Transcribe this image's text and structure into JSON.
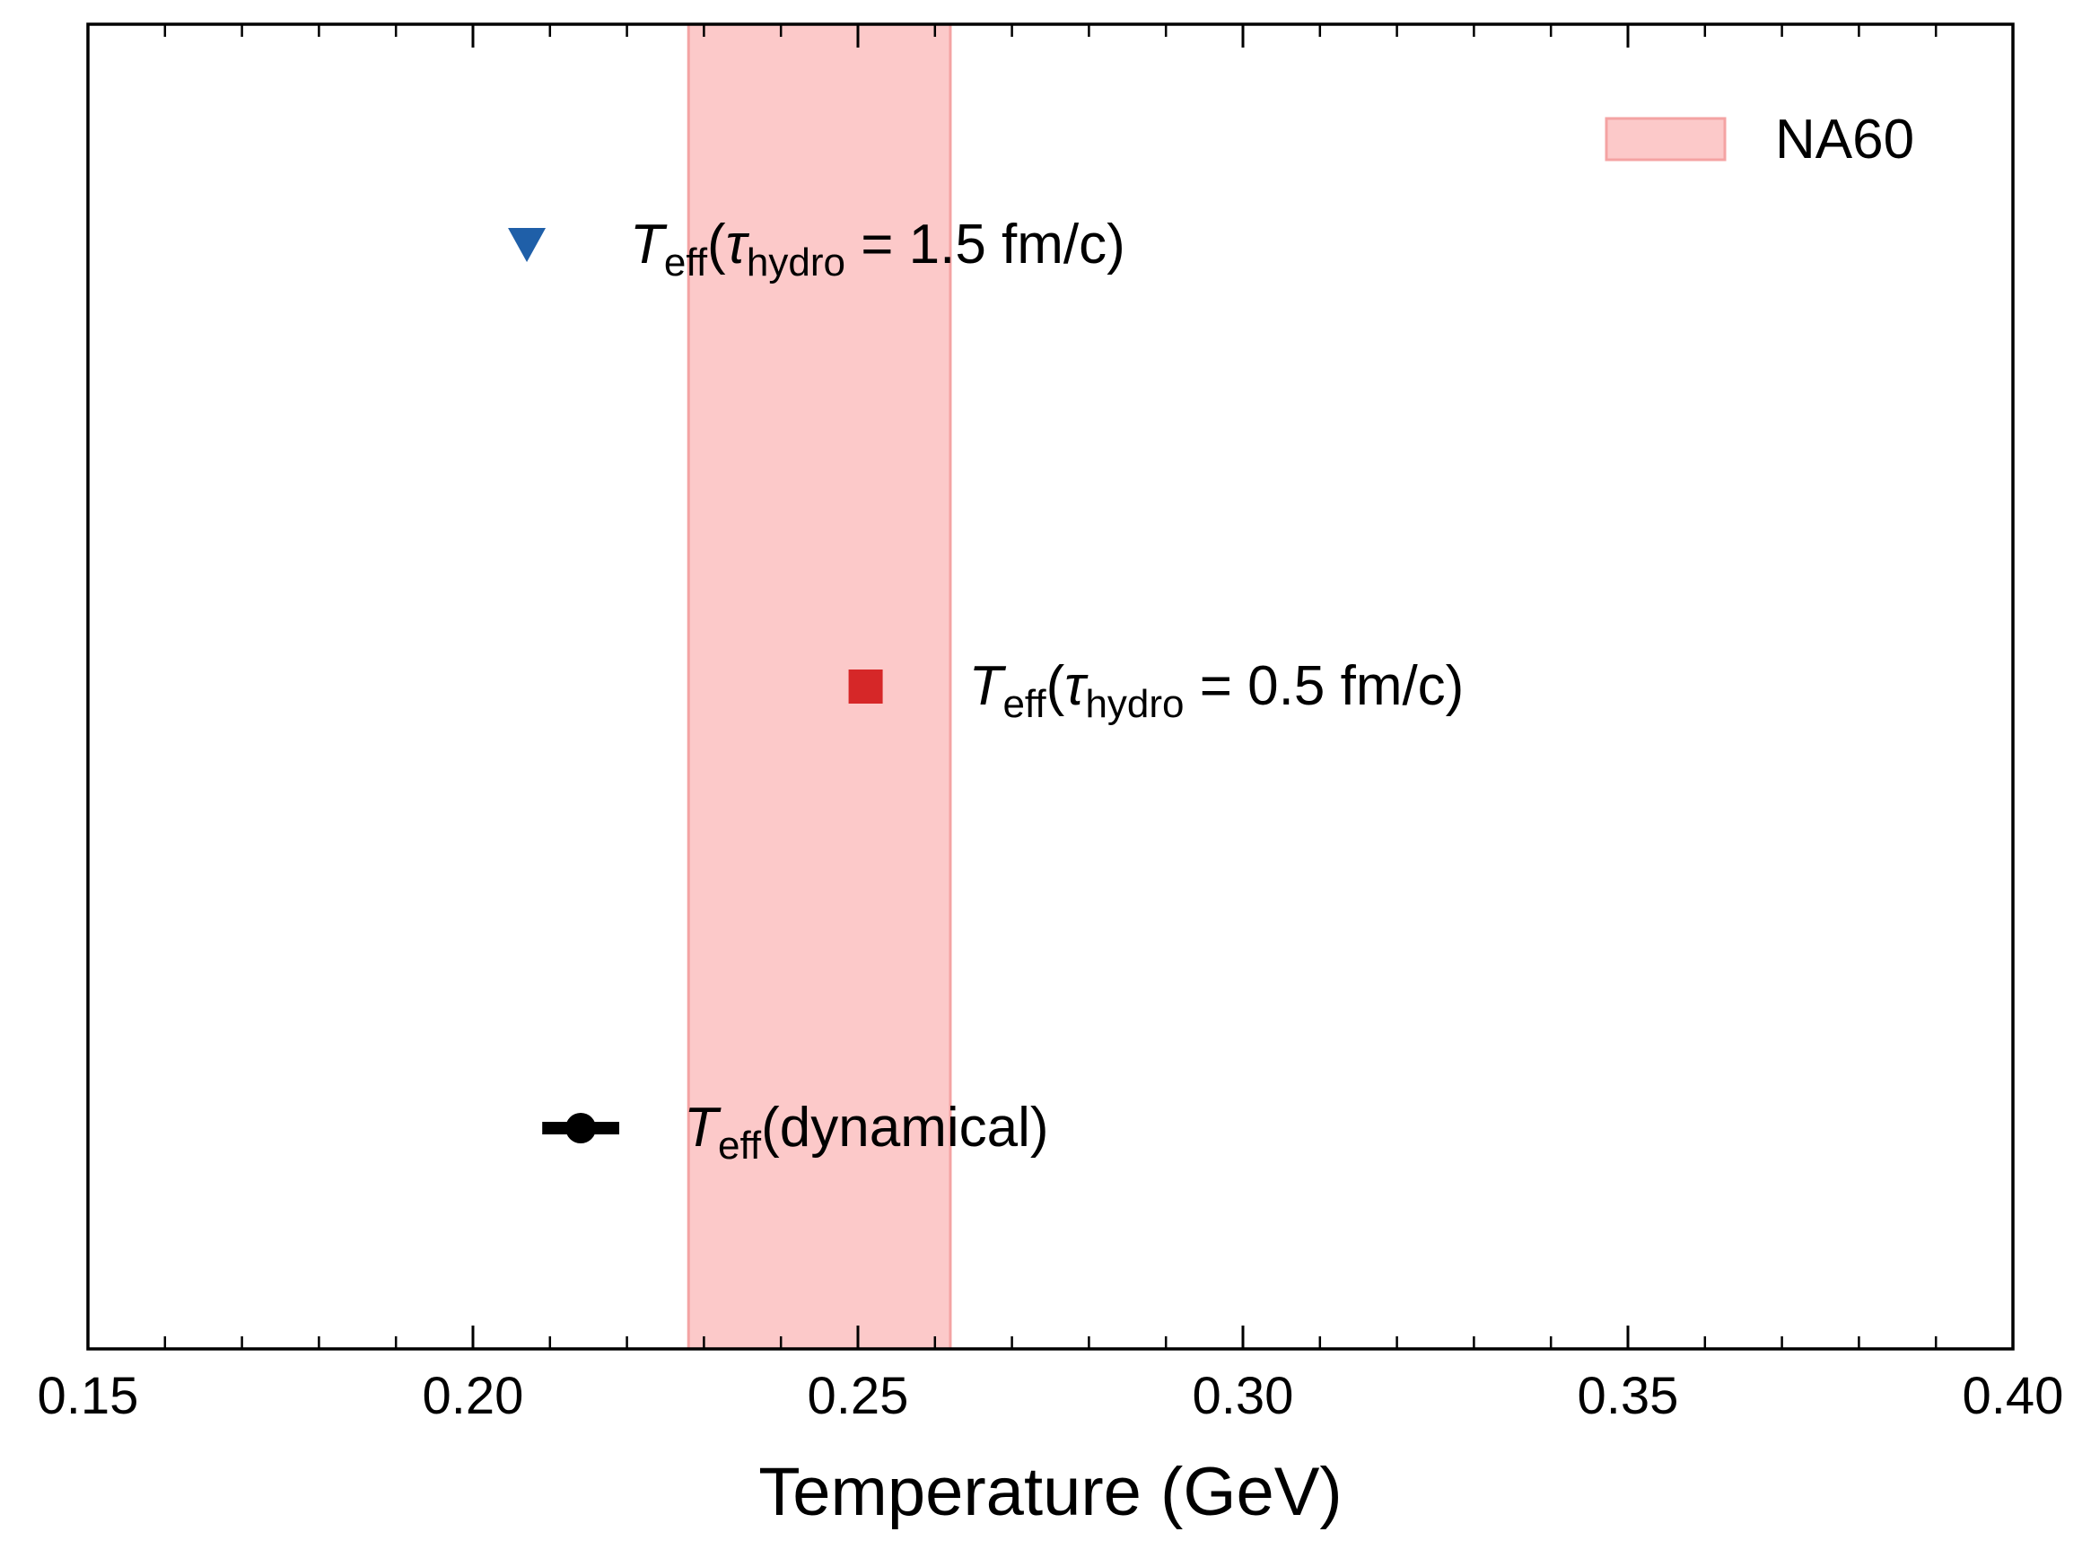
{
  "chart_data": {
    "type": "scatter",
    "xlabel": "Temperature (GeV)",
    "ylabel": "",
    "xlim": [
      0.15,
      0.4
    ],
    "ylim": [
      0,
      3
    ],
    "x_ticks": [
      "0.15",
      "0.20",
      "0.25",
      "0.30",
      "0.35",
      "0.40"
    ],
    "x_tick_values": [
      0.15,
      0.2,
      0.25,
      0.3,
      0.35,
      0.4
    ],
    "x_minor_step": 0.01,
    "grid": false,
    "legend_position": "top-right",
    "band": {
      "name": "NA60",
      "x_range": [
        0.228,
        0.262
      ],
      "fill_color": "#fcc9c9",
      "edge_color": "#f4a3a3"
    },
    "points": [
      {
        "name": "dynamical",
        "x": 0.214,
        "y": 0.5,
        "xerr": [
          0.005,
          0.005
        ],
        "marker": "circle",
        "color": "#000000",
        "label": {
          "main": "T",
          "sub": "eff",
          "text": "(dynamical)"
        }
      },
      {
        "name": "tau-0.5",
        "x": 0.251,
        "y": 1.5,
        "marker": "square",
        "color": "#d62728",
        "label": {
          "main": "T",
          "sub": "eff",
          "paren_open": "(",
          "tau": "τ",
          "tau_sub": "hydro",
          "text": " = 0.5 fm/c)"
        }
      },
      {
        "name": "tau-1.5",
        "x": 0.207,
        "y": 2.5,
        "marker": "triangle-down",
        "color": "#1f5fa8",
        "label": {
          "main": "T",
          "sub": "eff",
          "paren_open": "(",
          "tau": "τ",
          "tau_sub": "hydro",
          "text": " = 1.5 fm/c)"
        }
      }
    ]
  }
}
